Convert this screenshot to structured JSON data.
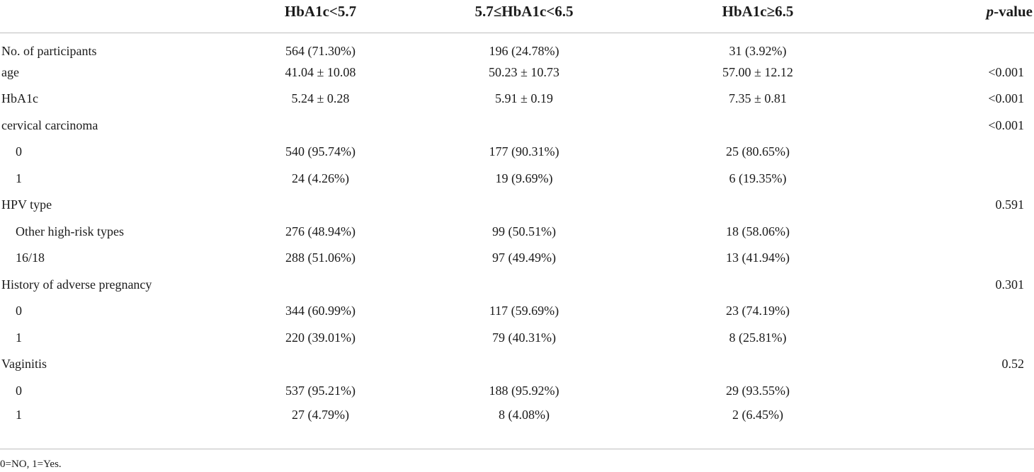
{
  "table": {
    "headers": {
      "label": "",
      "group1": "HbA1c<5.7",
      "group2": "5.7≤HbA1c<6.5",
      "group3": "HbA1c≥6.5",
      "pvalue_italic": "p",
      "pvalue_rest": "-value"
    },
    "rows": [
      {
        "label": "No. of participants",
        "indent": false,
        "g1": "564 (71.30%)",
        "g2": "196 (24.78%)",
        "g3": "31 (3.92%)",
        "p": ""
      },
      {
        "label": "age",
        "indent": false,
        "g1": "41.04 ± 10.08",
        "g2": "50.23 ± 10.73",
        "g3": "57.00 ± 12.12",
        "p": "<0.001"
      },
      {
        "label": "HbA1c",
        "indent": false,
        "g1": "5.24 ± 0.28",
        "g2": "5.91 ± 0.19",
        "g3": "7.35 ± 0.81",
        "p": "<0.001"
      },
      {
        "label": "cervical carcinoma",
        "indent": false,
        "g1": "",
        "g2": "",
        "g3": "",
        "p": "<0.001"
      },
      {
        "label": "0",
        "indent": true,
        "g1": "540 (95.74%)",
        "g2": "177 (90.31%)",
        "g3": "25 (80.65%)",
        "p": ""
      },
      {
        "label": "1",
        "indent": true,
        "g1": "24 (4.26%)",
        "g2": "19 (9.69%)",
        "g3": "6 (19.35%)",
        "p": ""
      },
      {
        "label": "HPV type",
        "indent": false,
        "g1": "",
        "g2": "",
        "g3": "",
        "p": "0.591"
      },
      {
        "label": "Other high-risk types",
        "indent": true,
        "g1": "276 (48.94%)",
        "g2": "99 (50.51%)",
        "g3": "18 (58.06%)",
        "p": ""
      },
      {
        "label": "16/18",
        "indent": true,
        "g1": "288 (51.06%)",
        "g2": "97 (49.49%)",
        "g3": "13 (41.94%)",
        "p": ""
      },
      {
        "label": "History of adverse pregnancy",
        "indent": false,
        "g1": "",
        "g2": "",
        "g3": "",
        "p": "0.301"
      },
      {
        "label": "0",
        "indent": true,
        "g1": "344 (60.99%)",
        "g2": "117 (59.69%)",
        "g3": "23 (74.19%)",
        "p": ""
      },
      {
        "label": "1",
        "indent": true,
        "g1": "220 (39.01%)",
        "g2": "79 (40.31%)",
        "g3": "8 (25.81%)",
        "p": ""
      },
      {
        "label": "Vaginitis",
        "indent": false,
        "g1": "",
        "g2": "",
        "g3": "",
        "p": "0.52"
      },
      {
        "label": "0",
        "indent": true,
        "g1": "537 (95.21%)",
        "g2": "188 (95.92%)",
        "g3": "29 (93.55%)",
        "p": ""
      },
      {
        "label": "1",
        "indent": true,
        "g1": "27 (4.79%)",
        "g2": "8 (4.08%)",
        "g3": "2 (6.45%)",
        "p": ""
      }
    ]
  },
  "footnote": "0=NO, 1=Yes."
}
